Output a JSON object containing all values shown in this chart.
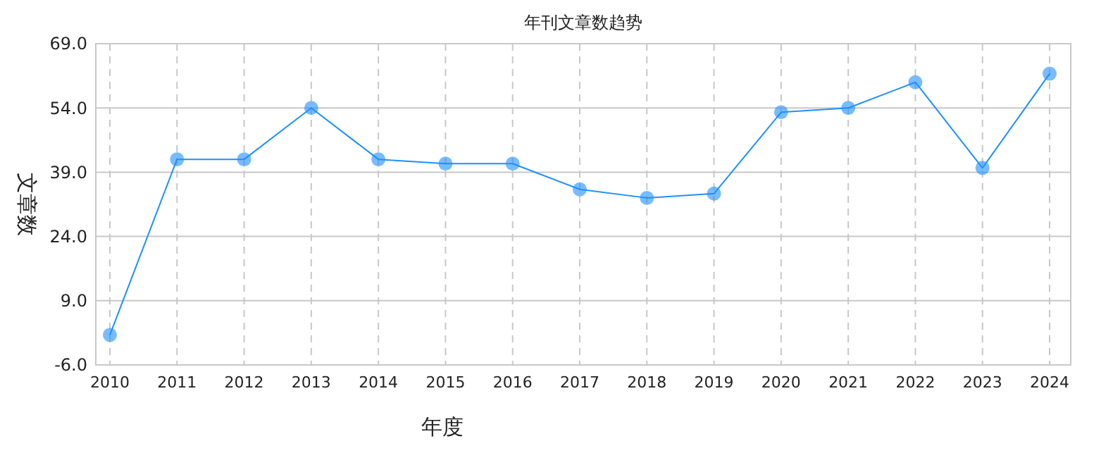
{
  "chart_data": {
    "type": "line",
    "title": "年刊文章数趋势",
    "xlabel": "年度",
    "ylabel": "文章数",
    "categories": [
      "2010",
      "2011",
      "2012",
      "2013",
      "2014",
      "2015",
      "2016",
      "2017",
      "2018",
      "2019",
      "2020",
      "2021",
      "2022",
      "2023",
      "2024"
    ],
    "series": [
      {
        "color": "#1e90ff",
        "values": [
          1,
          42,
          42,
          54,
          42,
          41,
          41,
          35,
          33,
          34,
          53,
          54,
          60,
          40,
          62
        ]
      }
    ],
    "ylim": [
      -6,
      69
    ],
    "yticks": [
      {
        "value": -6,
        "label": "-6.0"
      },
      {
        "value": 9,
        "label": "9.0"
      },
      {
        "value": 24,
        "label": "24.0"
      },
      {
        "value": 39,
        "label": "39.0"
      },
      {
        "value": 54,
        "label": "54.0"
      },
      {
        "value": 69,
        "label": "69.0"
      }
    ],
    "grid": true,
    "marker": "circle",
    "line_style": "solid"
  }
}
